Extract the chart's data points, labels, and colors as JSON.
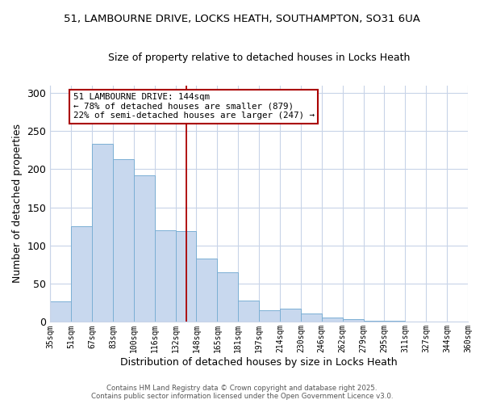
{
  "title": "51, LAMBOURNE DRIVE, LOCKS HEATH, SOUTHAMPTON, SO31 6UA",
  "subtitle": "Size of property relative to detached houses in Locks Heath",
  "xlabel": "Distribution of detached houses by size in Locks Heath",
  "ylabel": "Number of detached properties",
  "bar_color": "#c8d8ee",
  "bar_edge_color": "#7bafd4",
  "background_color": "#ffffff",
  "grid_color": "#c8d4e8",
  "bin_labels": [
    "35sqm",
    "51sqm",
    "67sqm",
    "83sqm",
    "100sqm",
    "116sqm",
    "132sqm",
    "148sqm",
    "165sqm",
    "181sqm",
    "197sqm",
    "214sqm",
    "230sqm",
    "246sqm",
    "262sqm",
    "279sqm",
    "295sqm",
    "311sqm",
    "327sqm",
    "344sqm",
    "360sqm"
  ],
  "bar_values": [
    27,
    125,
    233,
    213,
    192,
    120,
    119,
    83,
    65,
    28,
    15,
    17,
    11,
    6,
    4,
    2,
    1,
    0,
    0,
    0
  ],
  "vline_position": 6.5,
  "vline_color": "#aa0000",
  "annotation_title": "51 LAMBOURNE DRIVE: 144sqm",
  "annotation_line1": "← 78% of detached houses are smaller (879)",
  "annotation_line2": "22% of semi-detached houses are larger (247) →",
  "annotation_box_color": "#ffffff",
  "annotation_box_edge": "#aa0000",
  "footer1": "Contains HM Land Registry data © Crown copyright and database right 2025.",
  "footer2": "Contains public sector information licensed under the Open Government Licence v3.0.",
  "ylim": [
    0,
    310
  ],
  "yticks": [
    0,
    50,
    100,
    150,
    200,
    250,
    300
  ]
}
